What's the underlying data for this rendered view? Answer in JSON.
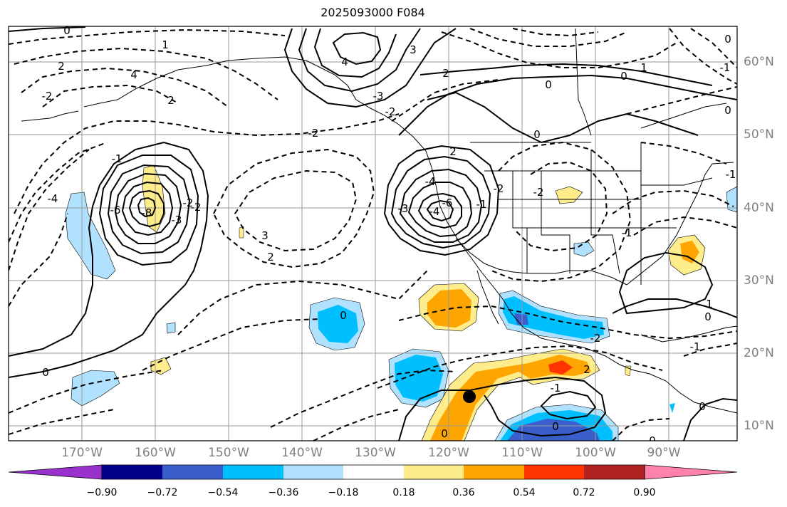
{
  "title": "2025093000 F084",
  "map": {
    "lon_labels": [
      "170°W",
      "160°W",
      "150°W",
      "140°W",
      "130°W",
      "120°W",
      "110°W",
      "100°W",
      "90°W"
    ],
    "lat_labels": [
      "60°N",
      "50°N",
      "40°N",
      "30°N",
      "20°N",
      "10°N"
    ],
    "contour_labels": [
      "0",
      "1",
      "2",
      "4",
      "-2",
      "2",
      "3",
      "4",
      "-3",
      "-2",
      "0",
      "1",
      "0",
      "2",
      "-2",
      "-4",
      "-1",
      "-3",
      "-6",
      "-8",
      "-2",
      "-2",
      "3",
      "2",
      "-3",
      "2",
      "-2",
      "0",
      "-1",
      "-4",
      "-6",
      "-4",
      "-2",
      "0",
      "2",
      "-2",
      "-1",
      "0",
      "1",
      "-1",
      "-1",
      "0",
      "0",
      "0",
      "0",
      "-1",
      "0",
      "-1",
      "0",
      "0"
    ],
    "marker": "black-dot"
  },
  "colorbar": {
    "colors": [
      "#9932cc",
      "#00008b",
      "#3a5fcd",
      "#00bfff",
      "#b0e2ff",
      "#ffffff",
      "#ffec8b",
      "#ffa500",
      "#ff3300",
      "#b22222",
      "#ff82ab"
    ],
    "tick_labels": [
      "−0.90",
      "−0.72",
      "−0.54",
      "−0.36",
      "−0.18",
      "0.18",
      "0.36",
      "0.54",
      "0.72",
      "0.90"
    ]
  }
}
